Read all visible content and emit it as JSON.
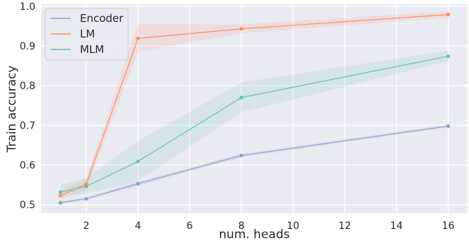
{
  "chart_data": {
    "type": "line",
    "xlabel": "num. heads",
    "ylabel": "Train accuracy",
    "x": [
      1,
      2,
      4,
      8,
      16
    ],
    "xlim": [
      0.25,
      16.75
    ],
    "ylim": [
      0.478,
      1.005
    ],
    "xticks": [
      2,
      4,
      6,
      8,
      10,
      12,
      14,
      16
    ],
    "yticks": [
      0.5,
      0.6,
      0.7,
      0.8,
      0.9,
      1.0
    ],
    "xtick_labels": [
      "2",
      "4",
      "6",
      "8",
      "10",
      "12",
      "14",
      "16"
    ],
    "ytick_labels": [
      "0.5",
      "0.6",
      "0.7",
      "0.8",
      "0.9",
      "1.0"
    ],
    "grid": true,
    "legend_position": "top-left",
    "series": [
      {
        "name": "Encoder",
        "color": "#8da0cb",
        "values": [
          0.505,
          0.515,
          0.553,
          0.624,
          0.698
        ],
        "band_low": [
          0.502,
          0.512,
          0.547,
          0.619,
          0.694
        ],
        "band_high": [
          0.509,
          0.519,
          0.559,
          0.629,
          0.702
        ]
      },
      {
        "name": "LM",
        "color": "#fc8d62",
        "values": [
          0.523,
          0.552,
          0.919,
          0.943,
          0.979
        ],
        "band_low": [
          0.513,
          0.537,
          0.885,
          0.932,
          0.971
        ],
        "band_high": [
          0.533,
          0.567,
          0.955,
          0.954,
          0.987
        ]
      },
      {
        "name": "MLM",
        "color": "#66c2a5",
        "values": [
          0.532,
          0.546,
          0.609,
          0.77,
          0.874
        ],
        "band_low": [
          0.518,
          0.527,
          0.56,
          0.733,
          0.862
        ],
        "band_high": [
          0.55,
          0.567,
          0.66,
          0.808,
          0.888
        ]
      }
    ]
  }
}
